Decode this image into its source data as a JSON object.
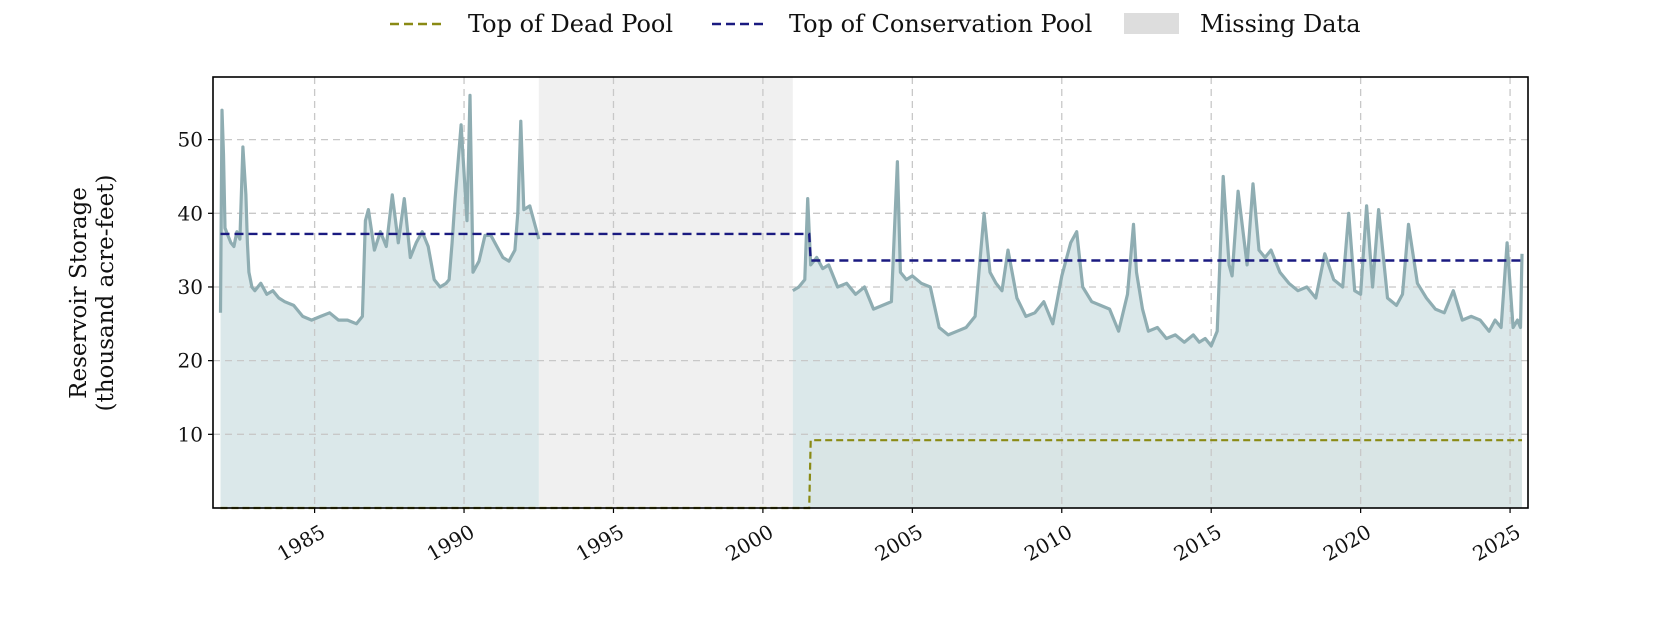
{
  "chart_data": {
    "type": "area",
    "title": "",
    "xlabel": "",
    "ylabel": [
      "Reservoir Storage",
      "(thousand acre-feet)"
    ],
    "xlim": [
      1981.6,
      2025.6
    ],
    "ylim": [
      0,
      58.5
    ],
    "x_ticks": [
      1985,
      1990,
      1995,
      2000,
      2005,
      2010,
      2015,
      2020,
      2025
    ],
    "x_tick_labels": [
      "1985",
      "1990",
      "1995",
      "2000",
      "2005",
      "2010",
      "2015",
      "2020",
      "2025"
    ],
    "y_ticks": [
      10,
      20,
      30,
      40,
      50
    ],
    "y_tick_labels": [
      "10",
      "20",
      "30",
      "40",
      "50"
    ],
    "grid": true,
    "legend_position": "top-center",
    "legend": [
      {
        "label": "Top of Dead Pool",
        "style": "dashed",
        "color": "#8a8a14"
      },
      {
        "label": "Top of Conservation Pool",
        "style": "dashed",
        "color": "#1a1a80"
      },
      {
        "label": "Missing Data",
        "style": "band",
        "color": "#dddddd"
      }
    ],
    "missing_data": [
      {
        "start": 1992.5,
        "end": 2001.0
      }
    ],
    "colors": {
      "storage_line": "#8fadb2",
      "storage_fill": "#d7e6e8",
      "dead_pool_fill": "#e8dfc9"
    },
    "series": [
      {
        "name": "Top of Conservation Pool",
        "kind": "step",
        "x": [
          1981.85,
          2001.55,
          2001.6,
          2025.4
        ],
        "y": [
          37.2,
          37.2,
          33.6,
          33.6
        ]
      },
      {
        "name": "Top of Dead Pool",
        "kind": "step",
        "x": [
          1981.85,
          2001.55,
          2001.6,
          2025.4
        ],
        "y": [
          0,
          0,
          9.2,
          9.2
        ]
      },
      {
        "name": "",
        "kind": "storage",
        "segments": [
          {
            "x": [
              1981.85,
              1981.9,
              1981.95,
              1982.0,
              1982.1,
              1982.2,
              1982.3,
              1982.4,
              1982.5,
              1982.6,
              1982.7,
              1982.75,
              1982.8,
              1982.9,
              1983.0,
              1983.2,
              1983.4,
              1983.6,
              1983.8,
              1984.0,
              1984.3,
              1984.6,
              1984.9,
              1985.2,
              1985.5,
              1985.8,
              1986.1,
              1986.4,
              1986.6,
              1986.7,
              1986.8,
              1987.0,
              1987.2,
              1987.4,
              1987.6,
              1987.8,
              1988.0,
              1988.2,
              1988.4,
              1988.6,
              1988.8,
              1989.0,
              1989.2,
              1989.4,
              1989.5,
              1989.6,
              1989.7,
              1989.9,
              1990.1,
              1990.2,
              1990.3,
              1990.5,
              1990.7,
              1990.9,
              1991.1,
              1991.3,
              1991.5,
              1991.7,
              1991.8,
              1991.9,
              1992.0,
              1992.2,
              1992.4,
              1992.5
            ],
            "y": [
              26.5,
              54.0,
              48.0,
              38.0,
              37.0,
              36.0,
              35.5,
              37.5,
              36.5,
              49.0,
              42.5,
              36.0,
              32.0,
              30.0,
              29.5,
              30.5,
              29.0,
              29.5,
              28.5,
              28.0,
              27.5,
              26.0,
              25.5,
              26.0,
              26.5,
              25.5,
              25.5,
              25.0,
              26.0,
              39.0,
              40.5,
              35.0,
              37.5,
              35.5,
              42.5,
              36.0,
              42.0,
              34.0,
              36.0,
              37.5,
              35.5,
              31.0,
              30.0,
              30.5,
              31.0,
              36.0,
              42.0,
              52.0,
              39.0,
              56.0,
              32.0,
              33.5,
              37.0,
              37.0,
              35.5,
              34.0,
              33.5,
              35.0,
              40.0,
              52.5,
              40.5,
              41.0,
              38.0,
              36.5
            ]
          },
          {
            "x": [
              2001.0,
              2001.2,
              2001.4,
              2001.5,
              2001.6,
              2001.8,
              2002.0,
              2002.2,
              2002.5,
              2002.8,
              2003.1,
              2003.4,
              2003.7,
              2004.0,
              2004.3,
              2004.5,
              2004.6,
              2004.8,
              2005.0,
              2005.3,
              2005.6,
              2005.9,
              2006.2,
              2006.5,
              2006.8,
              2007.1,
              2007.4,
              2007.6,
              2007.8,
              2008.0,
              2008.2,
              2008.5,
              2008.8,
              2009.1,
              2009.4,
              2009.7,
              2010.0,
              2010.3,
              2010.5,
              2010.7,
              2011.0,
              2011.3,
              2011.6,
              2011.9,
              2012.2,
              2012.4,
              2012.5,
              2012.7,
              2012.9,
              2013.2,
              2013.5,
              2013.8,
              2014.1,
              2014.4,
              2014.6,
              2014.8,
              2015.0,
              2015.2,
              2015.4,
              2015.6,
              2015.7,
              2015.9,
              2016.2,
              2016.4,
              2016.6,
              2016.8,
              2017.0,
              2017.3,
              2017.6,
              2017.9,
              2018.2,
              2018.5,
              2018.8,
              2019.1,
              2019.4,
              2019.6,
              2019.8,
              2020.0,
              2020.2,
              2020.4,
              2020.6,
              2020.9,
              2021.2,
              2021.4,
              2021.6,
              2021.9,
              2022.2,
              2022.5,
              2022.8,
              2023.1,
              2023.4,
              2023.7,
              2024.0,
              2024.3,
              2024.5,
              2024.7,
              2024.9,
              2025.1,
              2025.25,
              2025.35,
              2025.4
            ],
            "y": [
              29.5,
              30.0,
              31.0,
              42.0,
              33.0,
              34.0,
              32.5,
              33.0,
              30.0,
              30.5,
              29.0,
              30.0,
              27.0,
              27.5,
              28.0,
              47.0,
              32.0,
              31.0,
              31.5,
              30.5,
              30.0,
              24.5,
              23.5,
              24.0,
              24.5,
              26.0,
              40.0,
              32.0,
              30.5,
              29.5,
              35.0,
              28.5,
              26.0,
              26.5,
              28.0,
              25.0,
              31.5,
              36.0,
              37.5,
              30.0,
              28.0,
              27.5,
              27.0,
              24.0,
              29.0,
              38.5,
              32.0,
              27.0,
              24.0,
              24.5,
              23.0,
              23.5,
              22.5,
              23.5,
              22.5,
              23.0,
              22.0,
              24.0,
              45.0,
              33.0,
              31.5,
              43.0,
              33.0,
              44.0,
              35.0,
              34.0,
              35.0,
              32.0,
              30.5,
              29.5,
              30.0,
              28.5,
              34.5,
              31.0,
              30.0,
              40.0,
              29.5,
              29.0,
              41.0,
              30.0,
              40.5,
              28.5,
              27.5,
              29.0,
              38.5,
              30.5,
              28.5,
              27.0,
              26.5,
              29.5,
              25.5,
              26.0,
              25.5,
              24.0,
              25.5,
              24.5,
              36.0,
              24.5,
              25.5,
              24.5,
              34.5
            ]
          }
        ]
      }
    ]
  }
}
